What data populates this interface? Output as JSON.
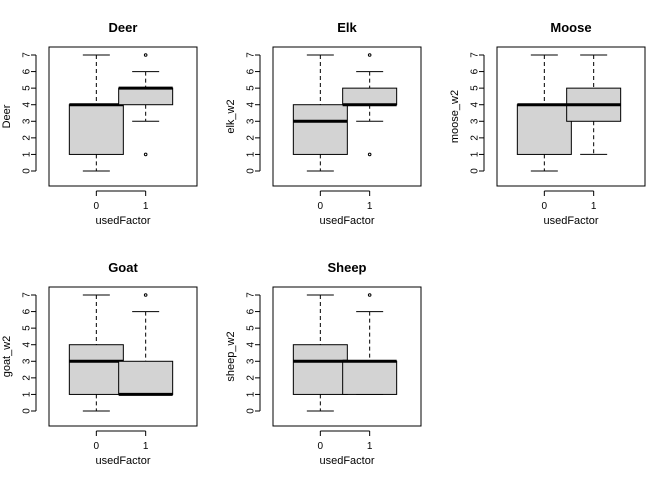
{
  "chart_data": [
    {
      "type": "boxplot",
      "title": "Deer",
      "xlabel": "usedFactor",
      "ylabel": "Deer",
      "categories": [
        "0",
        "1"
      ],
      "ylim": [
        0,
        7
      ],
      "yticks": [
        "0",
        "1",
        "2",
        "3",
        "4",
        "5",
        "6",
        "7"
      ],
      "boxes": [
        {
          "category": "0",
          "whisker_low": 0,
          "q1": 1,
          "median": 4,
          "q3": 4,
          "whisker_high": 7,
          "outliers": []
        },
        {
          "category": "1",
          "whisker_low": 3,
          "q1": 4,
          "median": 5,
          "q3": 5,
          "whisker_high": 6,
          "outliers": [
            1,
            7
          ]
        }
      ]
    },
    {
      "type": "boxplot",
      "title": "Elk",
      "xlabel": "usedFactor",
      "ylabel": "elk_w2",
      "categories": [
        "0",
        "1"
      ],
      "ylim": [
        0,
        7
      ],
      "yticks": [
        "0",
        "1",
        "2",
        "3",
        "4",
        "5",
        "6",
        "7"
      ],
      "boxes": [
        {
          "category": "0",
          "whisker_low": 0,
          "q1": 1,
          "median": 3,
          "q3": 4,
          "whisker_high": 7,
          "outliers": []
        },
        {
          "category": "1",
          "whisker_low": 3,
          "q1": 4,
          "median": 4,
          "q3": 5,
          "whisker_high": 6,
          "outliers": [
            1,
            7
          ]
        }
      ]
    },
    {
      "type": "boxplot",
      "title": "Moose",
      "xlabel": "usedFactor",
      "ylabel": "moose_w2",
      "categories": [
        "0",
        "1"
      ],
      "ylim": [
        0,
        7
      ],
      "yticks": [
        "0",
        "1",
        "2",
        "3",
        "4",
        "5",
        "6",
        "7"
      ],
      "boxes": [
        {
          "category": "0",
          "whisker_low": 0,
          "q1": 1,
          "median": 4,
          "q3": 4,
          "whisker_high": 7,
          "outliers": []
        },
        {
          "category": "1",
          "whisker_low": 1,
          "q1": 3,
          "median": 4,
          "q3": 5,
          "whisker_high": 7,
          "outliers": []
        }
      ]
    },
    {
      "type": "boxplot",
      "title": "Goat",
      "xlabel": "usedFactor",
      "ylabel": "goat_w2",
      "categories": [
        "0",
        "1"
      ],
      "ylim": [
        0,
        7
      ],
      "yticks": [
        "0",
        "1",
        "2",
        "3",
        "4",
        "5",
        "6",
        "7"
      ],
      "boxes": [
        {
          "category": "0",
          "whisker_low": 0,
          "q1": 1,
          "median": 3,
          "q3": 4,
          "whisker_high": 7,
          "outliers": []
        },
        {
          "category": "1",
          "whisker_low": 1,
          "q1": 1,
          "median": 1,
          "q3": 3,
          "whisker_high": 6,
          "outliers": [
            7
          ]
        }
      ]
    },
    {
      "type": "boxplot",
      "title": "Sheep",
      "xlabel": "usedFactor",
      "ylabel": "sheep_w2",
      "categories": [
        "0",
        "1"
      ],
      "ylim": [
        0,
        7
      ],
      "yticks": [
        "0",
        "1",
        "2",
        "3",
        "4",
        "5",
        "6",
        "7"
      ],
      "boxes": [
        {
          "category": "0",
          "whisker_low": 0,
          "q1": 1,
          "median": 3,
          "q3": 4,
          "whisker_high": 7,
          "outliers": []
        },
        {
          "category": "1",
          "whisker_low": 1,
          "q1": 1,
          "median": 3,
          "q3": 3,
          "whisker_high": 6,
          "outliers": [
            7
          ]
        }
      ]
    }
  ],
  "colors": {
    "box_fill": "#d3d3d3",
    "stroke": "#000000",
    "background": "#ffffff"
  }
}
